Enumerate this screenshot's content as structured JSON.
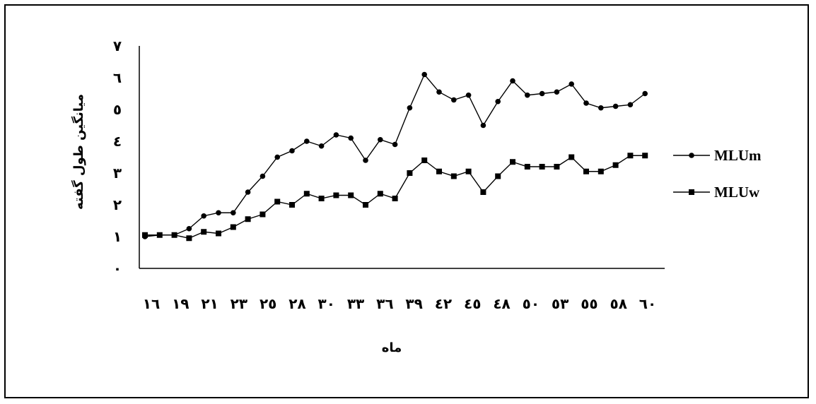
{
  "chart_data": {
    "type": "line",
    "title": "",
    "xlabel": "ماه",
    "ylabel": "میانگین طول گفته",
    "ylim": [
      0,
      7
    ],
    "y_ticks": [
      "۰",
      "۱",
      "۲",
      "۳",
      "٤",
      "٥",
      "٦",
      "۷"
    ],
    "x_tick_labels": [
      "۱٦",
      "۱۹",
      "۲۱",
      "۲۳",
      "۲٥",
      "۲۸",
      "۳۰",
      "۳۳",
      "۳٦",
      "۳۹",
      "٤۲",
      "٤٥",
      "٤۸",
      "٥۰",
      "٥۳",
      "٥٥",
      "٥۸",
      "٦۰"
    ],
    "legend_position": "right",
    "grid": false,
    "series": [
      {
        "name": "MLUm",
        "marker": "circle",
        "values": [
          1.0,
          1.05,
          1.05,
          1.25,
          1.65,
          1.75,
          1.75,
          2.4,
          2.9,
          3.5,
          3.7,
          4.0,
          3.85,
          4.2,
          4.1,
          3.4,
          4.05,
          3.9,
          5.05,
          6.1,
          5.55,
          5.3,
          5.45,
          4.5,
          5.25,
          5.9,
          5.45,
          5.5,
          5.55,
          5.8,
          5.2,
          5.05,
          5.1,
          5.15,
          5.5
        ]
      },
      {
        "name": "MLUw",
        "marker": "square",
        "values": [
          1.05,
          1.05,
          1.05,
          0.95,
          1.15,
          1.1,
          1.3,
          1.55,
          1.7,
          2.1,
          2.0,
          2.35,
          2.2,
          2.3,
          2.3,
          2.0,
          2.35,
          2.2,
          3.0,
          3.4,
          3.05,
          2.9,
          3.05,
          2.4,
          2.9,
          3.35,
          3.2,
          3.2,
          3.2,
          3.5,
          3.05,
          3.05,
          3.25,
          3.55,
          3.55
        ]
      }
    ]
  }
}
